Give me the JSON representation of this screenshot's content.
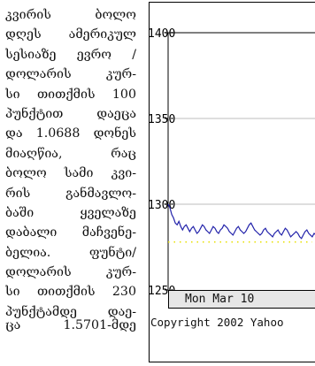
{
  "article": {
    "lines": [
      "კვირის ბოლო",
      "დღეს ამერიკულ",
      "სესიაზე ევრო /",
      "დოლარის კურ-",
      "სი თითქმის 100",
      "პუნქტით დაეცა",
      "და 1.0688 დონეს",
      "მიაღწია, რაც",
      "ბოლო სამი კვი-",
      "რის განმავლო-",
      "ბაში ყველაზე",
      "დაბალი მაჩვენე-",
      "ბელია. ფუნტი/",
      "დოლარის კურ-",
      "სი თითქმის 230",
      "პუნქტამდე დაე-",
      "ცა 1.5701-მდე"
    ]
  },
  "chart_data": {
    "type": "line",
    "y_ticks": [
      "1400",
      "1350",
      "1300",
      "1250"
    ],
    "ylim": [
      1250,
      1400
    ],
    "x_label": "Mon Mar 10",
    "series": [
      {
        "color": "#2222aa",
        "x": [
          0,
          2,
          4,
          6,
          8,
          10,
          12,
          14,
          16,
          18,
          20,
          22,
          24,
          26,
          28,
          30,
          32,
          34,
          36,
          38,
          40,
          42,
          44,
          46,
          48,
          50,
          52,
          54,
          56,
          58,
          60,
          62,
          64,
          66,
          68,
          70,
          72,
          74,
          76,
          78,
          80,
          82,
          84,
          86,
          88,
          90,
          92,
          94,
          96,
          98,
          100,
          102,
          104,
          106,
          108,
          110,
          112,
          114,
          116,
          118,
          120,
          122,
          124,
          126,
          128,
          130,
          132,
          134,
          136,
          138,
          140,
          142,
          144,
          146,
          148,
          150,
          152,
          154,
          156,
          158,
          160,
          162,
          164
        ],
        "values": [
          1300,
          1298,
          1294,
          1292,
          1289,
          1288,
          1290,
          1287,
          1285,
          1287,
          1288,
          1286,
          1284,
          1286,
          1287,
          1285,
          1283,
          1284,
          1286,
          1288,
          1287,
          1285,
          1284,
          1283,
          1285,
          1287,
          1286,
          1284,
          1283,
          1285,
          1286,
          1288,
          1287,
          1286,
          1284,
          1283,
          1282,
          1284,
          1286,
          1287,
          1285,
          1284,
          1283,
          1284,
          1286,
          1288,
          1289,
          1287,
          1285,
          1284,
          1283,
          1282,
          1283,
          1285,
          1286,
          1284,
          1283,
          1282,
          1281,
          1283,
          1284,
          1285,
          1283,
          1282,
          1284,
          1286,
          1285,
          1283,
          1281,
          1282,
          1283,
          1284,
          1283,
          1281,
          1280,
          1282,
          1284,
          1285,
          1283,
          1282,
          1281,
          1283,
          1282
        ]
      },
      {
        "color": "#e8e000",
        "x": [
          0,
          8,
          16,
          24,
          32,
          40,
          48,
          56,
          64,
          72,
          80,
          88,
          96,
          104,
          112,
          120,
          128,
          136,
          144,
          152,
          160
        ],
        "values": [
          1278,
          1278,
          1278,
          1278,
          1278,
          1278,
          1278,
          1278,
          1278,
          1278,
          1278,
          1278,
          1278,
          1278,
          1278,
          1278,
          1278,
          1278,
          1278,
          1278,
          1278
        ]
      }
    ],
    "grid": true,
    "copyright": "Copyright 2002 Yahoo"
  }
}
